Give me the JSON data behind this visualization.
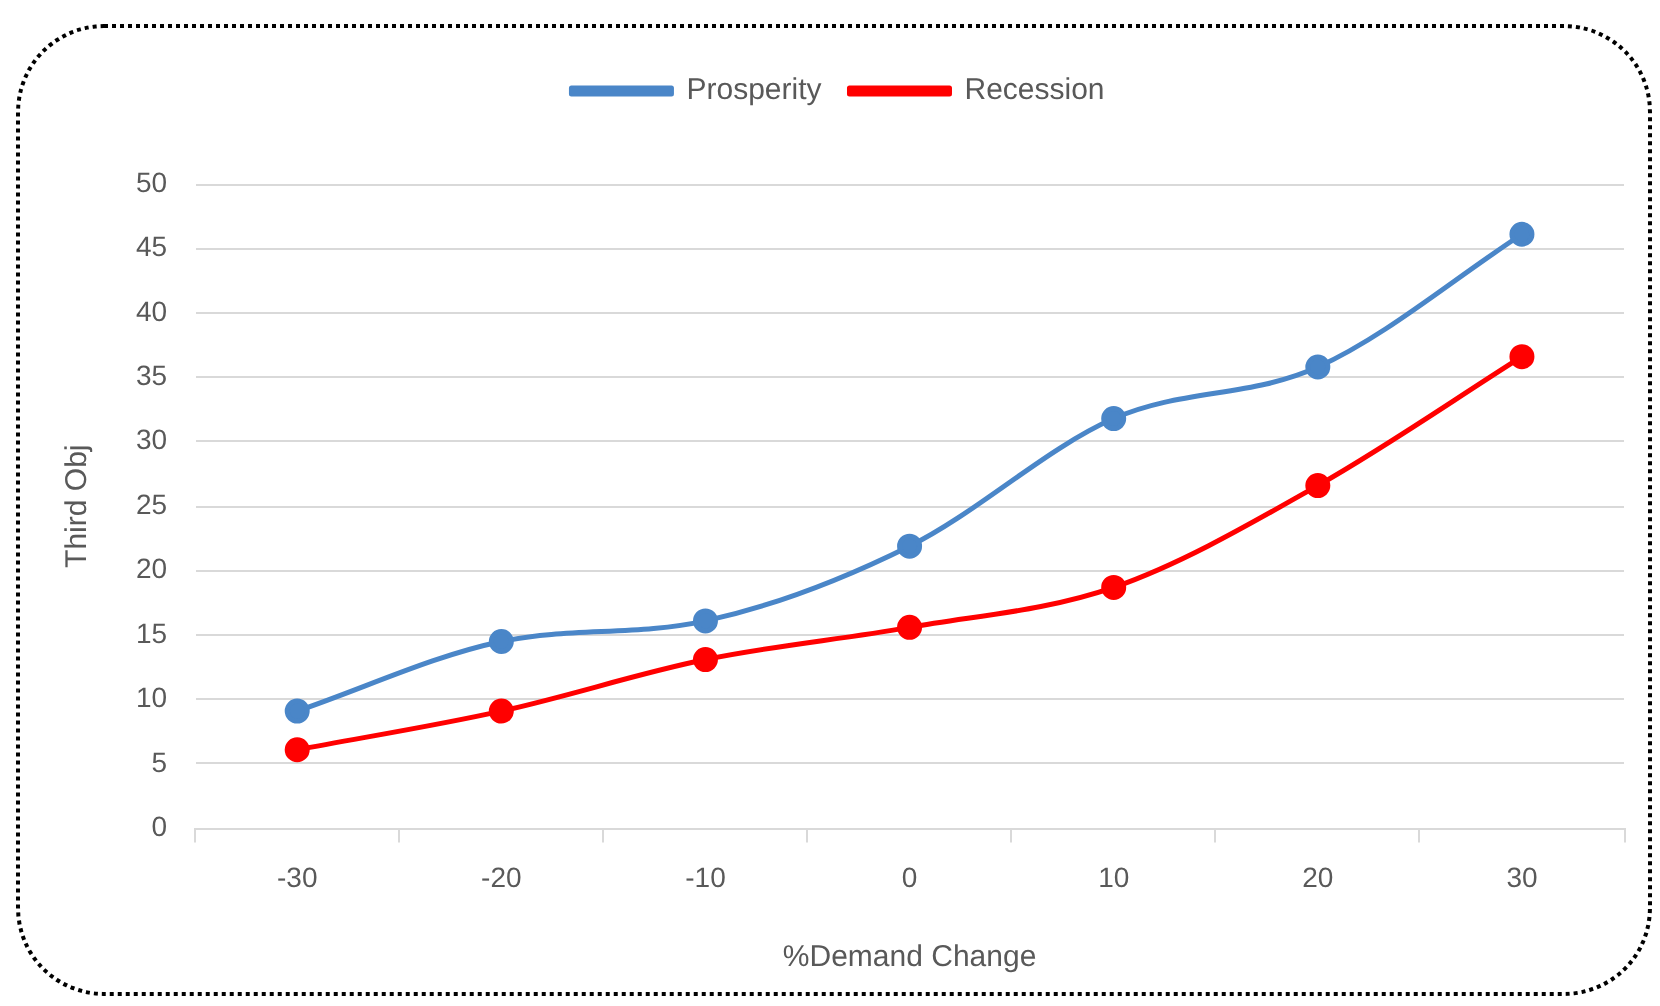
{
  "chart_data": {
    "type": "line",
    "xlabel": "%Demand Change",
    "ylabel": "Third Obj",
    "categories": [
      "-30",
      "-20",
      "-10",
      "0",
      "10",
      "20",
      "30"
    ],
    "series": [
      {
        "name": "Prosperity",
        "color": "#4a86c8",
        "values": [
          9.1,
          14.5,
          16.1,
          21.9,
          31.8,
          35.8,
          46.1
        ]
      },
      {
        "name": "Recession",
        "color": "#ff0000",
        "values": [
          6.1,
          9.1,
          13.1,
          15.6,
          18.7,
          26.6,
          36.6
        ]
      }
    ],
    "ylim": [
      0,
      50
    ],
    "yticks": [
      0,
      5,
      10,
      15,
      20,
      25,
      30,
      35,
      40,
      45,
      50
    ],
    "grid": "y",
    "legend": "top",
    "marker": "circle",
    "line_style": "solid"
  }
}
